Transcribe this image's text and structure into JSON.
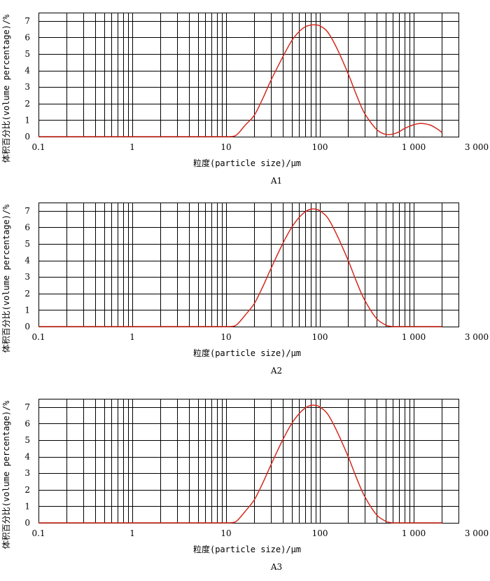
{
  "chart_data": [
    {
      "type": "line",
      "panel_label": "A1",
      "xlabel": "粒度(particle size)/μm",
      "ylabel": "体积百分比(volume percentage)/%",
      "xscale": "log",
      "xlim": [
        0.1,
        3000
      ],
      "ylim": [
        0,
        7.5
      ],
      "x_ticks": [
        0.1,
        1,
        10,
        100,
        1000,
        3000
      ],
      "x_tick_labels": [
        "0.1",
        "1",
        "10",
        "100",
        "1 000",
        "3 000"
      ],
      "y_ticks": [
        0,
        1,
        2,
        3,
        4,
        5,
        6,
        7
      ],
      "y_tick_labels": [
        "0",
        "1",
        "2",
        "3",
        "4",
        "5",
        "6",
        "7"
      ],
      "grid": true,
      "series": [
        {
          "name": "A1",
          "color": "#d42a1e",
          "x": [
            0.1,
            5,
            10,
            12,
            13,
            14,
            16,
            20,
            25,
            30,
            40,
            50,
            60,
            70,
            80,
            90,
            100,
            120,
            150,
            200,
            250,
            300,
            400,
            500,
            600,
            700,
            800,
            1000,
            1200,
            1500,
            1800,
            2000
          ],
          "y": [
            0,
            0,
            0,
            0.02,
            0.12,
            0.3,
            0.7,
            1.3,
            2.4,
            3.4,
            4.8,
            5.8,
            6.35,
            6.65,
            6.75,
            6.76,
            6.7,
            6.35,
            5.4,
            3.8,
            2.4,
            1.4,
            0.45,
            0.14,
            0.16,
            0.3,
            0.5,
            0.72,
            0.8,
            0.7,
            0.45,
            0.25
          ]
        }
      ]
    },
    {
      "type": "line",
      "panel_label": "A2",
      "xlabel": "粒度(particle size)/μm",
      "ylabel": "体积百分比(volume percentage)/%",
      "xscale": "log",
      "xlim": [
        0.1,
        3000
      ],
      "ylim": [
        0,
        7.5
      ],
      "x_ticks": [
        0.1,
        1,
        10,
        100,
        1000,
        3000
      ],
      "x_tick_labels": [
        "0.1",
        "1",
        "10",
        "100",
        "1 000",
        "3 000"
      ],
      "y_ticks": [
        0,
        1,
        2,
        3,
        4,
        5,
        6,
        7
      ],
      "y_tick_labels": [
        "0",
        "1",
        "2",
        "3",
        "4",
        "5",
        "6",
        "7"
      ],
      "grid": true,
      "series": [
        {
          "name": "A2",
          "color": "#d42a1e",
          "x": [
            0.1,
            5,
            10,
            12,
            13,
            14,
            16,
            20,
            25,
            30,
            40,
            50,
            60,
            70,
            80,
            90,
            100,
            120,
            150,
            200,
            250,
            300,
            400,
            500,
            550,
            600,
            700,
            1000,
            2000
          ],
          "y": [
            0,
            0,
            0,
            0.02,
            0.12,
            0.3,
            0.7,
            1.4,
            2.5,
            3.5,
            5.0,
            6.0,
            6.6,
            6.95,
            7.1,
            7.1,
            7.0,
            6.6,
            5.6,
            4.0,
            2.6,
            1.6,
            0.5,
            0.1,
            0.03,
            0,
            0,
            0,
            0
          ]
        }
      ]
    },
    {
      "type": "line",
      "panel_label": "A3",
      "xlabel": "粒度(particle size)/μm",
      "ylabel": "体积百分比(volume percentage)/%",
      "xscale": "log",
      "xlim": [
        0.1,
        3000
      ],
      "ylim": [
        0,
        7.5
      ],
      "x_ticks": [
        0.1,
        1,
        10,
        100,
        1000,
        3000
      ],
      "x_tick_labels": [
        "0.1",
        "1",
        "10",
        "100",
        "1 000",
        "3 000"
      ],
      "y_ticks": [
        0,
        1,
        2,
        3,
        4,
        5,
        6,
        7
      ],
      "y_tick_labels": [
        "0",
        "1",
        "2",
        "3",
        "4",
        "5",
        "6",
        "7"
      ],
      "grid": true,
      "series": [
        {
          "name": "A3",
          "color": "#d42a1e",
          "x": [
            0.1,
            5,
            10,
            12,
            13,
            14,
            16,
            20,
            25,
            30,
            40,
            50,
            60,
            70,
            80,
            90,
            100,
            120,
            150,
            200,
            250,
            300,
            400,
            500,
            550,
            600,
            700,
            1000,
            2000
          ],
          "y": [
            0,
            0,
            0,
            0.02,
            0.12,
            0.3,
            0.7,
            1.4,
            2.5,
            3.5,
            5.0,
            6.0,
            6.6,
            6.95,
            7.1,
            7.1,
            7.0,
            6.6,
            5.6,
            4.0,
            2.6,
            1.6,
            0.5,
            0.1,
            0.03,
            0,
            0,
            0,
            0
          ]
        }
      ]
    }
  ]
}
